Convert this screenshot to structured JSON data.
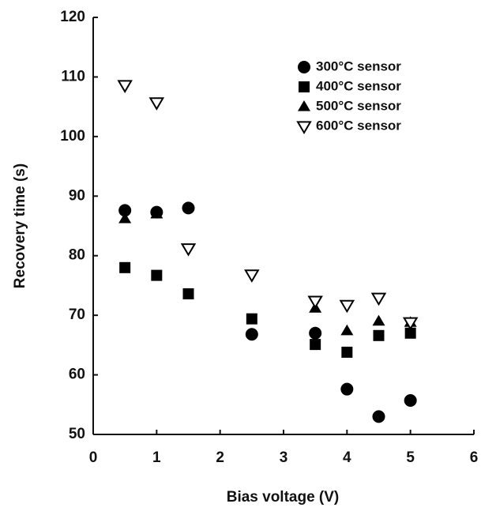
{
  "chart_data": {
    "type": "scatter",
    "x_label": "Bias voltage (V)",
    "y_label": "Recovery time (s)",
    "xlim": [
      0,
      6
    ],
    "xticks": [
      0,
      1,
      2,
      3,
      4,
      5,
      6
    ],
    "ylim": [
      50,
      120
    ],
    "yticks": [
      50,
      60,
      70,
      80,
      90,
      100,
      110,
      120
    ],
    "legend": "upper right",
    "grid": false,
    "series": [
      {
        "name": "300°C sensor",
        "color": "#000000",
        "marker": "circle",
        "x": [
          0.5,
          1,
          1.5,
          2.5,
          3.5,
          4,
          4.5,
          5
        ],
        "values": [
          87.6,
          87.3,
          88,
          66.8,
          67,
          57.6,
          53,
          55.7
        ]
      },
      {
        "name": "400°C sensor",
        "color": "#000000",
        "marker": "square",
        "x": [
          0.5,
          1,
          1.5,
          2.5,
          3.5,
          4,
          4.5,
          5
        ],
        "values": [
          78,
          76.7,
          73.6,
          69.4,
          65.1,
          63.8,
          66.6,
          67
        ]
      },
      {
        "name": "500°C sensor",
        "color": "#000000",
        "marker": "triangle",
        "x": [
          0.5,
          1,
          3.5,
          4,
          4.5,
          5
        ],
        "values": [
          86.2,
          87,
          71.2,
          67.4,
          69,
          68.8
        ]
      },
      {
        "name": "600°C sensor",
        "color": "#000000",
        "marker": "triangle-down",
        "x": [
          0.5,
          1,
          1.5,
          2.5,
          3.5,
          4,
          4.5,
          5
        ],
        "values": [
          108.6,
          105.7,
          81.2,
          76.8,
          72.4,
          71.7,
          72.9,
          68.8
        ]
      }
    ]
  }
}
